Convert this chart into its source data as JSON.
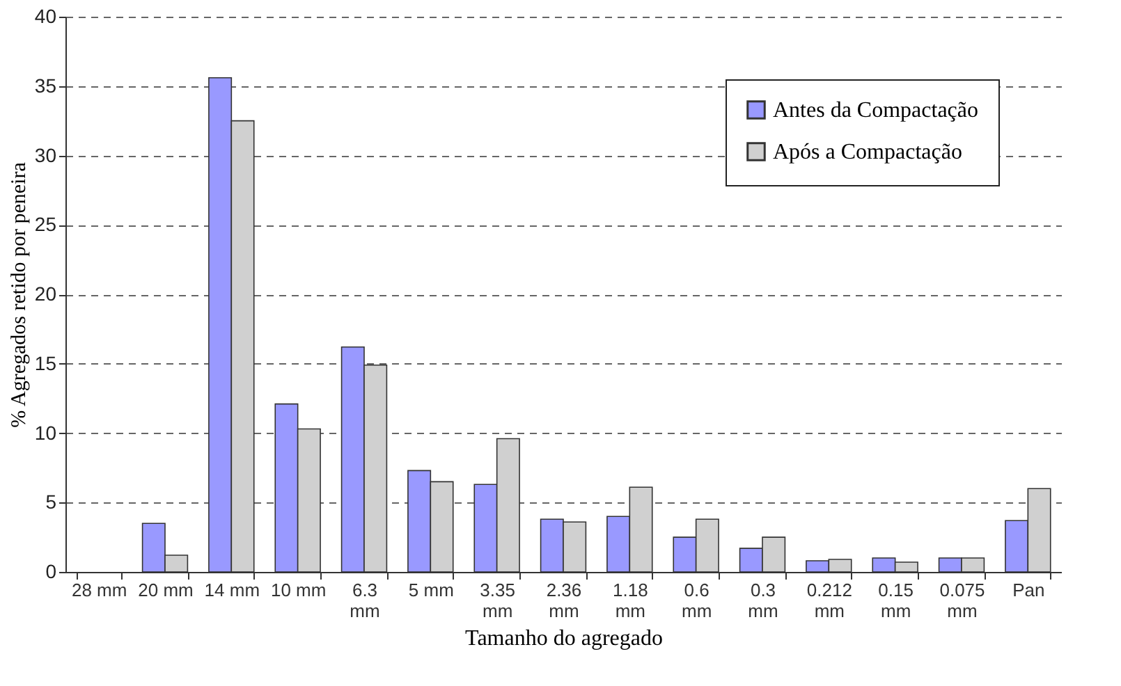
{
  "chart_data": {
    "type": "bar",
    "xlabel": "Tamanho do agregado",
    "ylabel": "% Agregados retido por peneira",
    "categories": [
      "28 mm",
      "20 mm",
      "14 mm",
      "10 mm",
      "6.3 mm",
      "5 mm",
      "3.35 mm",
      "2.36 mm",
      "1.18 mm",
      "0.6 mm",
      "0.3 mm",
      "0.212 mm",
      "0.15 mm",
      "0.075 mm",
      "Pan"
    ],
    "series": [
      {
        "name": "Antes da Compactação",
        "color": "#9999ff",
        "values": [
          null,
          3.5,
          35.6,
          12.1,
          16.2,
          7.3,
          6.3,
          3.8,
          4.0,
          2.5,
          1.7,
          0.8,
          1.0,
          1.0,
          3.7
        ]
      },
      {
        "name": "Após a Compactação",
        "color": "#d0d0d0",
        "values": [
          null,
          1.2,
          32.5,
          10.3,
          14.9,
          6.5,
          9.6,
          3.6,
          6.1,
          3.8,
          2.5,
          0.9,
          0.7,
          1.0,
          6.0
        ]
      }
    ],
    "ylim": [
      0,
      40
    ],
    "yticks": [
      0,
      5,
      10,
      15,
      20,
      25,
      30,
      35,
      40
    ],
    "grid": "y",
    "legend": "top right"
  }
}
